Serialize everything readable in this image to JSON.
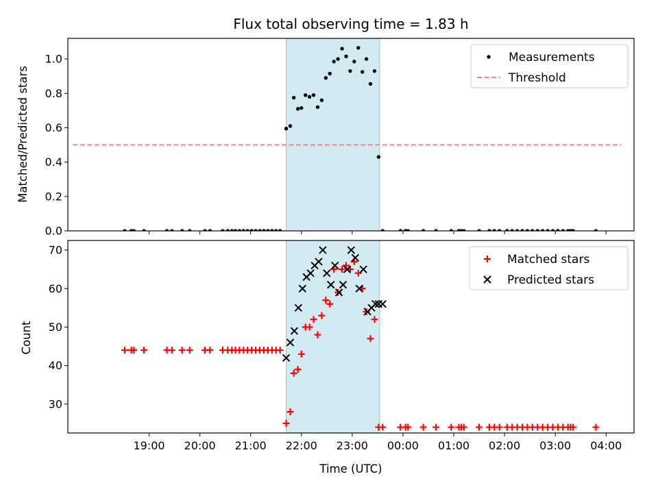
{
  "chart_data": [
    {
      "type": "scatter",
      "title": "Flux total observing time = 1.83 h",
      "xlabel": "",
      "ylabel": "Matched/Predicted stars",
      "xlim": [
        -1.6,
        9.55
      ],
      "ylim": [
        0.0,
        1.12
      ],
      "x_unit": "hours after 19:00 UTC",
      "yticks": [
        0.0,
        0.2,
        0.4,
        0.6,
        0.8,
        1.0
      ],
      "yticklabels": [
        "0.0",
        "0.2",
        "0.4",
        "0.6",
        "0.8",
        "1.0"
      ],
      "shaded_interval": [
        2.7,
        4.54
      ],
      "shade_color": "#add8e6",
      "legend_position": "upper right",
      "series": [
        {
          "name": "Measurements",
          "marker": "dot",
          "color": "#000000",
          "x": [
            -0.48,
            -0.35,
            -0.3,
            -0.1,
            0.35,
            0.45,
            0.65,
            0.8,
            1.1,
            1.2,
            1.45,
            1.55,
            1.63,
            1.7,
            1.78,
            1.86,
            1.94,
            2.02,
            2.1,
            2.18,
            2.26,
            2.34,
            2.42,
            2.5,
            2.58,
            2.7,
            2.78,
            2.85,
            2.93,
            3.0,
            3.08,
            3.16,
            3.24,
            3.32,
            3.4,
            3.48,
            3.56,
            3.64,
            3.72,
            3.8,
            3.88,
            3.96,
            4.04,
            4.12,
            4.2,
            4.28,
            4.36,
            4.44,
            4.52,
            4.6,
            4.95,
            5.05,
            5.1,
            5.4,
            5.65,
            5.95,
            6.1,
            6.15,
            6.2,
            6.5,
            6.7,
            6.8,
            6.9,
            7.05,
            7.15,
            7.25,
            7.35,
            7.45,
            7.55,
            7.65,
            7.75,
            7.85,
            7.95,
            8.05,
            8.15,
            8.25,
            8.3,
            8.35,
            8.8
          ],
          "y": [
            0,
            0,
            0,
            0,
            0,
            0,
            0,
            0,
            0,
            0,
            0,
            0,
            0,
            0,
            0,
            0,
            0,
            0,
            0,
            0,
            0,
            0,
            0,
            0,
            0,
            0.595,
            0.61,
            0.775,
            0.71,
            0.715,
            0.79,
            0.78,
            0.79,
            0.72,
            0.76,
            0.89,
            0.915,
            0.985,
            1.0,
            1.06,
            1.015,
            0.93,
            0.985,
            1.065,
            0.925,
            1.0,
            0.855,
            0.93,
            0.43,
            0,
            0,
            0,
            0,
            0,
            0,
            0,
            0,
            0,
            0,
            0,
            0,
            0,
            0,
            0,
            0,
            0,
            0,
            0,
            0,
            0,
            0,
            0,
            0,
            0,
            0,
            0,
            0,
            0,
            0
          ]
        },
        {
          "name": "Threshold",
          "marker": "dashed-line",
          "color": "#ff7f7f",
          "x": [
            -1.5,
            9.3
          ],
          "y": [
            0.5,
            0.5
          ]
        }
      ]
    },
    {
      "type": "scatter",
      "title": "",
      "xlabel": "Time (UTC)",
      "ylabel": "Count",
      "xlim": [
        -1.6,
        9.55
      ],
      "ylim": [
        22.5,
        72.5
      ],
      "x_unit": "hours after 19:00 UTC",
      "xticks": [
        0,
        1,
        2,
        3,
        4,
        5,
        6,
        7,
        8,
        9
      ],
      "xticklabels": [
        "19:00",
        "20:00",
        "21:00",
        "22:00",
        "23:00",
        "00:00",
        "01:00",
        "02:00",
        "03:00",
        "04:00"
      ],
      "yticks": [
        30,
        40,
        50,
        60,
        70
      ],
      "yticklabels": [
        "30",
        "40",
        "50",
        "60",
        "70"
      ],
      "shaded_interval": [
        2.7,
        4.54
      ],
      "shade_color": "#add8e6",
      "legend_position": "upper right",
      "series": [
        {
          "name": "Matched stars",
          "marker": "plus",
          "color": "#ff0000",
          "x": [
            -0.48,
            -0.35,
            -0.3,
            -0.1,
            0.35,
            0.45,
            0.65,
            0.8,
            1.1,
            1.2,
            1.45,
            1.55,
            1.63,
            1.7,
            1.78,
            1.86,
            1.94,
            2.02,
            2.1,
            2.18,
            2.26,
            2.34,
            2.42,
            2.5,
            2.58,
            2.7,
            2.78,
            2.85,
            2.93,
            3.0,
            3.08,
            3.16,
            3.24,
            3.32,
            3.4,
            3.48,
            3.56,
            3.64,
            3.72,
            3.8,
            3.88,
            3.96,
            4.04,
            4.12,
            4.2,
            4.28,
            4.36,
            4.44,
            4.52,
            4.6,
            4.95,
            5.05,
            5.1,
            5.4,
            5.65,
            5.95,
            6.1,
            6.15,
            6.2,
            6.5,
            6.7,
            6.8,
            6.9,
            7.05,
            7.15,
            7.25,
            7.35,
            7.45,
            7.55,
            7.65,
            7.75,
            7.85,
            7.95,
            8.05,
            8.15,
            8.25,
            8.3,
            8.35,
            8.8
          ],
          "y": [
            44,
            44,
            44,
            44,
            44,
            44,
            44,
            44,
            44,
            44,
            44,
            44,
            44,
            44,
            44,
            44,
            44,
            44,
            44,
            44,
            44,
            44,
            44,
            44,
            44,
            25,
            28,
            38,
            39,
            43,
            50,
            50,
            52,
            48,
            53,
            57,
            56,
            65,
            59,
            65,
            66,
            65,
            67,
            64,
            60,
            54,
            47,
            52,
            24,
            24,
            24,
            24,
            24,
            24,
            24,
            24,
            24,
            24,
            24,
            24,
            24,
            24,
            24,
            24,
            24,
            24,
            24,
            24,
            24,
            24,
            24,
            24,
            24,
            24,
            24,
            24,
            24,
            24,
            24
          ]
        },
        {
          "name": "Predicted stars",
          "marker": "x",
          "color": "#000000",
          "x": [
            2.7,
            2.78,
            2.86,
            2.94,
            3.02,
            3.1,
            3.18,
            3.26,
            3.34,
            3.42,
            3.5,
            3.58,
            3.66,
            3.74,
            3.82,
            3.9,
            3.98,
            4.06,
            4.14,
            4.22,
            4.3,
            4.38,
            4.46,
            4.52,
            4.6
          ],
          "y": [
            42,
            46,
            49,
            55,
            60,
            63,
            64,
            66,
            67,
            70,
            64,
            61,
            66,
            59,
            61,
            65,
            70,
            68,
            60,
            65,
            54,
            55,
            56,
            56,
            56
          ]
        }
      ]
    }
  ]
}
